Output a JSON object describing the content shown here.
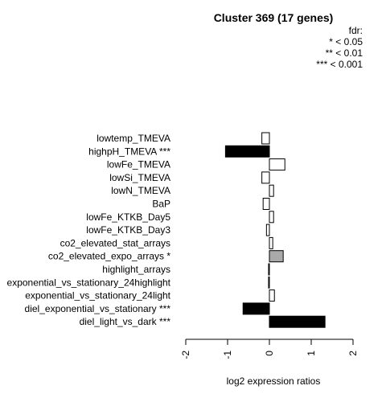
{
  "chart_data": {
    "type": "bar",
    "orientation": "horizontal",
    "title": "Cluster 369 (17 genes)",
    "xlabel": "log2 expression ratios",
    "ylabel": "",
    "xlim": [
      -2,
      2
    ],
    "xticks": [
      "-2",
      "-1",
      "0",
      "1",
      "2"
    ],
    "legend": {
      "title": "fdr:",
      "entries": [
        "* < 0.05",
        "** < 0.01",
        "*** < 0.001"
      ],
      "position": "top-right"
    },
    "categories": [
      "lowtemp_TMEVA",
      "highpH_TMEVA ***",
      "lowFe_TMEVA",
      "lowSi_TMEVA",
      "lowN_TMEVA",
      "BaP",
      "lowFe_KTKB_Day5",
      "lowFe_KTKB_Day3",
      "co2_elevated_stat_arrays",
      "co2_elevated_expo_arrays *",
      "highlight_arrays",
      "exponential_vs_stationary_24highlight",
      "exponential_vs_stationary_24light",
      "diel_exponential_vs_stationary ***",
      "diel_light_vs_dark ***"
    ],
    "values": [
      -0.18,
      -1.05,
      0.37,
      -0.18,
      0.1,
      -0.15,
      0.1,
      -0.07,
      0.08,
      0.33,
      -0.02,
      -0.02,
      0.12,
      -0.63,
      1.33
    ],
    "significance": [
      "",
      "***",
      "",
      "",
      "",
      "",
      "",
      "",
      "",
      "*",
      "",
      "",
      "",
      "***",
      "***"
    ],
    "colors": {
      "none": "#ffffff",
      "*": "#aaaaaa",
      "**": "#555555",
      "***": "#000000",
      "stroke": "#000000"
    }
  }
}
